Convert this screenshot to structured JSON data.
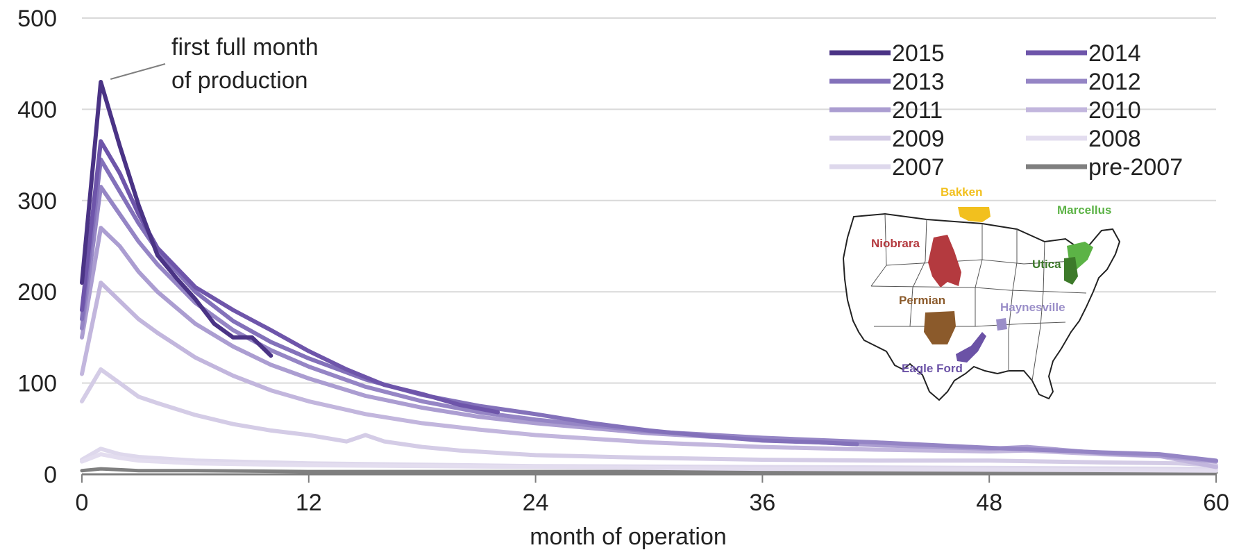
{
  "chart_data": {
    "type": "line",
    "xlabel": "month of operation",
    "ylabel": "",
    "xlim": [
      0,
      60
    ],
    "ylim": [
      0,
      500
    ],
    "x_ticks": [
      0,
      12,
      24,
      36,
      48,
      60
    ],
    "y_ticks": [
      0,
      100,
      200,
      300,
      400,
      500
    ],
    "grid": "horizontal",
    "legend_position": "top-right",
    "annotation": {
      "lines": [
        "first full month",
        "of production"
      ],
      "points_to": {
        "x": 1,
        "y": 430
      }
    },
    "series": [
      {
        "name": "pre-2007",
        "color": "#7f7f7f",
        "x": [
          0,
          1,
          2,
          3,
          6,
          12,
          24,
          36,
          48,
          60
        ],
        "y": [
          4,
          6,
          5,
          4,
          4,
          3,
          3,
          3,
          2,
          2
        ]
      },
      {
        "name": "2007",
        "color": "#ded8ec",
        "x": [
          0,
          1,
          2,
          3,
          6,
          12,
          24,
          36,
          48,
          60
        ],
        "y": [
          16,
          28,
          22,
          19,
          15,
          12,
          9,
          8,
          7,
          6
        ]
      },
      {
        "name": "2008",
        "color": "#e3ddef",
        "x": [
          0,
          1,
          2,
          3,
          6,
          12,
          24,
          36,
          48,
          60
        ],
        "y": [
          14,
          22,
          18,
          15,
          12,
          10,
          8,
          6,
          5,
          4
        ]
      },
      {
        "name": "2009",
        "color": "#d4cce6",
        "x": [
          0,
          1,
          2,
          3,
          4,
          6,
          8,
          10,
          12,
          14,
          15,
          16,
          18,
          20,
          24,
          30,
          36,
          42,
          48,
          54,
          58,
          60
        ],
        "y": [
          80,
          115,
          100,
          85,
          78,
          65,
          55,
          48,
          43,
          36,
          43,
          36,
          30,
          26,
          21,
          18,
          16,
          15,
          15,
          13,
          12,
          10
        ]
      },
      {
        "name": "2010",
        "color": "#c2b6dd",
        "x": [
          0,
          1,
          2,
          3,
          4,
          6,
          8,
          10,
          12,
          15,
          18,
          21,
          24,
          30,
          36,
          42,
          48,
          50,
          54,
          57,
          60
        ],
        "y": [
          110,
          210,
          190,
          170,
          155,
          128,
          108,
          92,
          80,
          66,
          56,
          49,
          43,
          35,
          30,
          27,
          25,
          26,
          22,
          20,
          8
        ]
      },
      {
        "name": "2011",
        "color": "#ab9dd1",
        "x": [
          0,
          1,
          2,
          3,
          4,
          6,
          8,
          10,
          12,
          15,
          18,
          21,
          24,
          30,
          36,
          42,
          48,
          50,
          54,
          57,
          60
        ],
        "y": [
          150,
          270,
          250,
          222,
          200,
          165,
          140,
          120,
          105,
          86,
          73,
          63,
          56,
          45,
          38,
          32,
          28,
          30,
          23,
          20,
          14
        ]
      },
      {
        "name": "2012",
        "color": "#9585c5",
        "x": [
          0,
          1,
          2,
          3,
          4,
          6,
          8,
          10,
          12,
          15,
          18,
          21,
          24,
          30,
          36,
          42,
          48,
          54,
          57,
          60
        ],
        "y": [
          160,
          315,
          285,
          255,
          230,
          188,
          158,
          136,
          118,
          96,
          80,
          68,
          60,
          47,
          40,
          35,
          29,
          24,
          22,
          15
        ]
      },
      {
        "name": "2013",
        "color": "#8371ba",
        "x": [
          0,
          1,
          2,
          3,
          4,
          6,
          8,
          10,
          12,
          15,
          18,
          21,
          24,
          27,
          30,
          33,
          36,
          39,
          41
        ],
        "y": [
          170,
          345,
          310,
          275,
          245,
          200,
          168,
          145,
          127,
          104,
          87,
          75,
          66,
          56,
          48,
          42,
          37,
          35,
          33
        ]
      },
      {
        "name": "2014",
        "color": "#6e55aa",
        "x": [
          0,
          1,
          2,
          3,
          4,
          6,
          8,
          10,
          12,
          14,
          16,
          18,
          20,
          22
        ],
        "y": [
          180,
          365,
          330,
          285,
          248,
          205,
          180,
          158,
          135,
          115,
          98,
          88,
          76,
          68
        ]
      },
      {
        "name": "2015",
        "color": "#4a3385",
        "x": [
          0,
          1,
          2,
          3,
          4,
          5,
          6,
          7,
          8,
          9,
          10
        ],
        "y": [
          210,
          430,
          360,
          295,
          240,
          215,
          192,
          165,
          150,
          150,
          130
        ]
      }
    ],
    "legend_order": [
      "2015",
      "2014",
      "2013",
      "2012",
      "2011",
      "2010",
      "2009",
      "2008",
      "2007",
      "pre-2007"
    ],
    "inset_map": {
      "regions": [
        {
          "name": "Bakken",
          "color": "#f2c01e"
        },
        {
          "name": "Marcellus",
          "color": "#5cb346"
        },
        {
          "name": "Niobrara",
          "color": "#b43a3f"
        },
        {
          "name": "Utica",
          "color": "#3d7a2a"
        },
        {
          "name": "Permian",
          "color": "#8b5a2b"
        },
        {
          "name": "Haynesville",
          "color": "#9a8ec8"
        },
        {
          "name": "Eagle Ford",
          "color": "#6b52a6"
        }
      ]
    }
  }
}
